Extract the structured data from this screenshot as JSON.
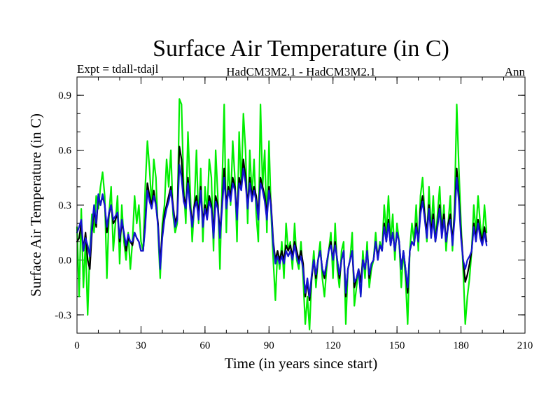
{
  "chart_data": {
    "type": "line",
    "title": "Surface Air Temperature (in C)",
    "subtitle_left": "Expt = tdall-tdajl",
    "subtitle_center": "HadCM3M2.1 - HadCM3M2.1",
    "subtitle_right": "Ann",
    "xlabel": "Time (in years since start)",
    "ylabel": "Surface Air Temperature (in C)",
    "xlim": [
      0,
      210
    ],
    "ylim": [
      -0.4,
      1.0
    ],
    "x_ticks": [
      0,
      30,
      60,
      90,
      120,
      150,
      180,
      210
    ],
    "x_tick_labels": [
      "0",
      "30",
      "60",
      "90",
      "120",
      "150",
      "180",
      "210"
    ],
    "y_ticks": [
      -0.3,
      0.0,
      0.3,
      0.6,
      0.9
    ],
    "y_tick_labels": [
      "-0.3",
      "0.0",
      "0.3",
      "0.6",
      "0.9"
    ],
    "x_minor_step": 10,
    "y_minor_step": 0.1,
    "grid": false,
    "colors": {
      "green": "#00ee00",
      "black": "#000000",
      "blue": "#1414d2",
      "axes": "#000000"
    },
    "series": [
      {
        "name": "green",
        "color": "#00ee00",
        "x_start": 0,
        "values": [
          0.18,
          -0.2,
          0.28,
          -0.15,
          0.1,
          -0.3,
          0.05,
          0.25,
          0.15,
          0.35,
          0.28,
          0.4,
          0.48,
          0.35,
          -0.1,
          0.25,
          0.4,
          0.05,
          0.2,
          0.35,
          -0.02,
          0.3,
          0.1,
          0.0,
          0.15,
          -0.05,
          0.1,
          0.35,
          0.2,
          0.3,
          0.1,
          0.05,
          0.4,
          0.65,
          0.5,
          0.3,
          0.55,
          0.45,
          0.15,
          -0.1,
          0.2,
          0.3,
          0.55,
          0.4,
          0.6,
          0.25,
          0.15,
          0.2,
          0.88,
          0.85,
          0.4,
          0.2,
          0.7,
          0.4,
          0.1,
          0.3,
          0.6,
          0.2,
          0.5,
          0.1,
          0.4,
          0.25,
          0.55,
          0.45,
          0.05,
          0.6,
          0.35,
          -0.05,
          0.4,
          0.85,
          0.15,
          0.55,
          0.3,
          0.65,
          0.45,
          0.1,
          0.7,
          0.4,
          0.8,
          0.6,
          0.2,
          0.6,
          0.35,
          0.55,
          0.25,
          0.1,
          0.85,
          0.4,
          0.6,
          0.15,
          0.65,
          0.25,
          0.0,
          -0.22,
          0.05,
          -0.05,
          0.1,
          -0.1,
          0.2,
          0.05,
          0.1,
          -0.05,
          0.2,
          0.0,
          -0.05,
          0.1,
          -0.1,
          -0.35,
          -0.2,
          -0.38,
          -0.1,
          0.05,
          -0.15,
          0.0,
          0.1,
          -0.1,
          -0.2,
          -0.05,
          0.05,
          0.15,
          -0.1,
          0.2,
          -0.05,
          -0.15,
          0.05,
          0.1,
          -0.35,
          -0.05,
          0.0,
          0.15,
          -0.25,
          -0.15,
          -0.05,
          -0.2,
          0.05,
          -0.1,
          0.1,
          -0.15,
          -0.05,
          0.0,
          0.15,
          0.0,
          0.1,
          0.05,
          0.3,
          0.15,
          0.35,
          0.1,
          0.25,
          0.0,
          0.2,
          0.1,
          -0.15,
          0.05,
          -0.1,
          -0.35,
          0.05,
          0.2,
          0.1,
          0.3,
          0.05,
          0.35,
          0.45,
          0.25,
          0.1,
          0.4,
          0.15,
          0.35,
          0.1,
          0.25,
          0.4,
          0.15,
          0.3,
          0.05,
          0.2,
          0.35,
          0.05,
          0.3,
          0.85,
          0.5,
          0.2,
          -0.05,
          -0.35,
          -0.2,
          -0.1,
          0.05,
          0.3,
          0.15,
          0.35,
          0.2,
          0.1,
          0.3,
          0.15
        ]
      },
      {
        "name": "black",
        "color": "#000000",
        "x_start": 0,
        "values": [
          0.1,
          0.12,
          0.2,
          0.05,
          0.15,
          0.0,
          -0.05,
          0.15,
          0.28,
          0.18,
          0.35,
          0.3,
          0.35,
          0.3,
          0.15,
          0.25,
          0.3,
          0.2,
          0.22,
          0.25,
          0.1,
          0.2,
          0.15,
          0.05,
          0.12,
          0.1,
          0.08,
          0.15,
          0.12,
          0.1,
          0.05,
          0.05,
          0.2,
          0.42,
          0.35,
          0.3,
          0.38,
          0.3,
          0.2,
          -0.02,
          0.15,
          0.25,
          0.3,
          0.35,
          0.4,
          0.3,
          0.2,
          0.25,
          0.62,
          0.55,
          0.35,
          0.3,
          0.45,
          0.3,
          0.2,
          0.3,
          0.35,
          0.25,
          0.4,
          0.2,
          0.3,
          0.25,
          0.35,
          0.3,
          0.15,
          0.35,
          0.3,
          0.15,
          0.3,
          0.5,
          0.3,
          0.4,
          0.35,
          0.45,
          0.4,
          0.25,
          0.45,
          0.4,
          0.55,
          0.45,
          0.3,
          0.45,
          0.35,
          0.4,
          0.35,
          0.25,
          0.45,
          0.4,
          0.35,
          0.25,
          0.4,
          0.3,
          0.1,
          0.0,
          0.05,
          0.0,
          0.05,
          0.0,
          0.08,
          0.05,
          0.08,
          0.02,
          0.1,
          0.05,
          0.0,
          0.05,
          -0.02,
          -0.2,
          -0.12,
          -0.22,
          -0.1,
          0.0,
          -0.1,
          0.0,
          0.05,
          -0.05,
          -0.1,
          -0.02,
          0.05,
          0.1,
          0.0,
          0.1,
          0.0,
          -0.1,
          0.0,
          0.05,
          -0.2,
          -0.05,
          0.0,
          0.05,
          -0.15,
          -0.1,
          -0.05,
          -0.12,
          0.0,
          -0.05,
          0.05,
          -0.1,
          -0.02,
          0.0,
          0.1,
          0.02,
          0.08,
          0.05,
          0.2,
          0.1,
          0.22,
          0.08,
          0.15,
          0.05,
          0.15,
          0.1,
          -0.05,
          0.05,
          -0.05,
          -0.18,
          0.05,
          0.1,
          0.08,
          0.2,
          0.1,
          0.28,
          0.35,
          0.25,
          0.15,
          0.3,
          0.15,
          0.25,
          0.1,
          0.2,
          0.3,
          0.15,
          0.25,
          0.1,
          0.2,
          0.25,
          0.1,
          0.25,
          0.5,
          0.35,
          0.15,
          0.0,
          -0.12,
          -0.08,
          -0.02,
          0.05,
          0.2,
          0.12,
          0.22,
          0.15,
          0.1,
          0.18,
          0.1
        ]
      },
      {
        "name": "blue",
        "color": "#1414d2",
        "x_start": 0,
        "values": [
          0.15,
          0.18,
          0.22,
          0.05,
          0.12,
          0.08,
          0.02,
          0.18,
          0.3,
          0.2,
          0.36,
          0.3,
          0.36,
          0.3,
          0.18,
          0.26,
          0.3,
          0.22,
          0.24,
          0.26,
          0.12,
          0.22,
          0.15,
          0.08,
          0.14,
          0.1,
          0.1,
          0.15,
          0.12,
          0.1,
          0.05,
          0.05,
          0.18,
          0.38,
          0.32,
          0.28,
          0.35,
          0.3,
          0.18,
          -0.05,
          0.12,
          0.22,
          0.28,
          0.32,
          0.38,
          0.28,
          0.18,
          0.22,
          0.52,
          0.45,
          0.32,
          0.28,
          0.42,
          0.28,
          0.18,
          0.28,
          0.32,
          0.22,
          0.38,
          0.18,
          0.28,
          0.22,
          0.32,
          0.28,
          0.12,
          0.32,
          0.28,
          0.12,
          0.28,
          0.45,
          0.28,
          0.38,
          0.32,
          0.42,
          0.38,
          0.22,
          0.42,
          0.38,
          0.5,
          0.42,
          0.28,
          0.42,
          0.32,
          0.38,
          0.32,
          0.22,
          0.42,
          0.38,
          0.32,
          0.22,
          0.38,
          0.28,
          0.08,
          -0.02,
          0.02,
          -0.02,
          0.02,
          -0.02,
          0.05,
          0.02,
          0.05,
          0.0,
          0.08,
          0.02,
          -0.02,
          0.02,
          -0.05,
          -0.18,
          -0.1,
          -0.2,
          -0.08,
          0.0,
          -0.08,
          0.0,
          0.05,
          -0.05,
          -0.08,
          -0.02,
          0.05,
          0.08,
          0.0,
          0.08,
          0.0,
          -0.08,
          0.0,
          0.05,
          -0.18,
          -0.05,
          0.0,
          0.05,
          -0.12,
          -0.1,
          -0.05,
          -0.2,
          0.0,
          -0.05,
          0.05,
          -0.08,
          -0.02,
          0.0,
          0.1,
          0.0,
          0.08,
          0.05,
          0.18,
          0.1,
          0.2,
          0.08,
          0.15,
          0.05,
          0.15,
          0.1,
          -0.05,
          0.05,
          -0.05,
          -0.15,
          0.05,
          0.1,
          0.08,
          0.18,
          0.1,
          0.25,
          0.32,
          0.22,
          0.12,
          0.28,
          0.12,
          0.22,
          0.1,
          0.18,
          0.28,
          0.12,
          0.22,
          0.1,
          0.18,
          0.22,
          0.08,
          0.22,
          0.45,
          0.32,
          0.12,
          0.0,
          -0.05,
          0.0,
          0.02,
          0.05,
          0.18,
          0.1,
          0.2,
          0.12,
          0.08,
          0.15,
          0.08
        ]
      }
    ]
  }
}
